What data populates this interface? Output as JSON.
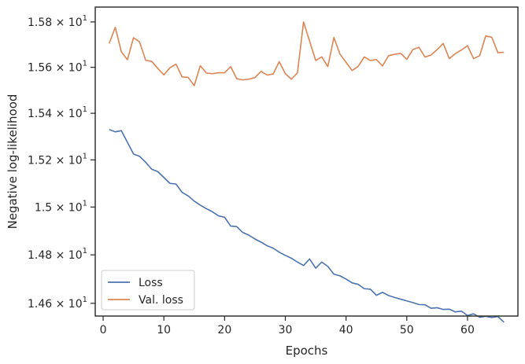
{
  "chart_data": {
    "type": "line",
    "xlabel": "Epochs",
    "ylabel": "Negative log-likelihood",
    "xlim": [
      -1.3,
      68.3
    ],
    "ylim": [
      14.548,
      15.866
    ],
    "y_scale": "log",
    "grid": false,
    "legend_position": "lower-left",
    "x_ticks": [
      0,
      10,
      20,
      30,
      40,
      50,
      60
    ],
    "y_ticks": [
      {
        "value": 14.6,
        "label": "1.46 × 10^1"
      },
      {
        "value": 14.8,
        "label": "1.48 × 10^1"
      },
      {
        "value": 15.0,
        "label": "1.5 × 10^1"
      },
      {
        "value": 15.2,
        "label": "1.52 × 10^1"
      },
      {
        "value": 15.4,
        "label": "1.54 × 10^1"
      },
      {
        "value": 15.6,
        "label": "1.56 × 10^1"
      },
      {
        "value": 15.8,
        "label": "1.58 × 10^1"
      }
    ],
    "x": [
      1,
      2,
      3,
      4,
      5,
      6,
      7,
      8,
      9,
      10,
      11,
      12,
      13,
      14,
      15,
      16,
      17,
      18,
      19,
      20,
      21,
      22,
      23,
      24,
      25,
      26,
      27,
      28,
      29,
      30,
      31,
      32,
      33,
      34,
      35,
      36,
      37,
      38,
      39,
      40,
      41,
      42,
      43,
      44,
      45,
      46,
      47,
      48,
      49,
      50,
      51,
      52,
      53,
      54,
      55,
      56,
      57,
      58,
      59,
      60,
      61,
      62,
      63,
      64,
      65,
      66
    ],
    "series": [
      {
        "name": "Loss",
        "color": "#4c72b0",
        "values": [
          15.33,
          15.32,
          15.325,
          15.275,
          15.225,
          15.215,
          15.19,
          15.16,
          15.15,
          15.125,
          15.1,
          15.097,
          15.062,
          15.047,
          15.025,
          15.008,
          14.993,
          14.98,
          14.963,
          14.957,
          14.92,
          14.918,
          14.893,
          14.882,
          14.866,
          14.853,
          14.838,
          14.828,
          14.811,
          14.798,
          14.786,
          14.77,
          14.756,
          14.783,
          14.745,
          14.77,
          14.752,
          14.72,
          14.713,
          14.7,
          14.684,
          14.678,
          14.66,
          14.658,
          14.633,
          14.645,
          14.632,
          14.624,
          14.617,
          14.61,
          14.603,
          14.595,
          14.594,
          14.58,
          14.582,
          14.575,
          14.576,
          14.565,
          14.568,
          14.55,
          14.557,
          14.543,
          14.547,
          14.542,
          14.546,
          14.523
        ]
      },
      {
        "name": "Val. loss",
        "color": "#dd8452",
        "values": [
          15.705,
          15.776,
          15.668,
          15.633,
          15.73,
          15.712,
          15.631,
          15.626,
          15.595,
          15.567,
          15.598,
          15.614,
          15.558,
          15.556,
          15.52,
          15.607,
          15.575,
          15.572,
          15.576,
          15.576,
          15.603,
          15.55,
          15.545,
          15.548,
          15.555,
          15.582,
          15.566,
          15.571,
          15.625,
          15.572,
          15.548,
          15.576,
          15.8,
          15.715,
          15.63,
          15.646,
          15.603,
          15.731,
          15.658,
          15.622,
          15.586,
          15.604,
          15.646,
          15.63,
          15.634,
          15.606,
          15.651,
          15.657,
          15.661,
          15.635,
          15.678,
          15.688,
          15.645,
          15.654,
          15.678,
          15.705,
          15.638,
          15.66,
          15.676,
          15.695,
          15.638,
          15.651,
          15.738,
          15.732,
          15.664,
          15.666
        ]
      }
    ]
  }
}
